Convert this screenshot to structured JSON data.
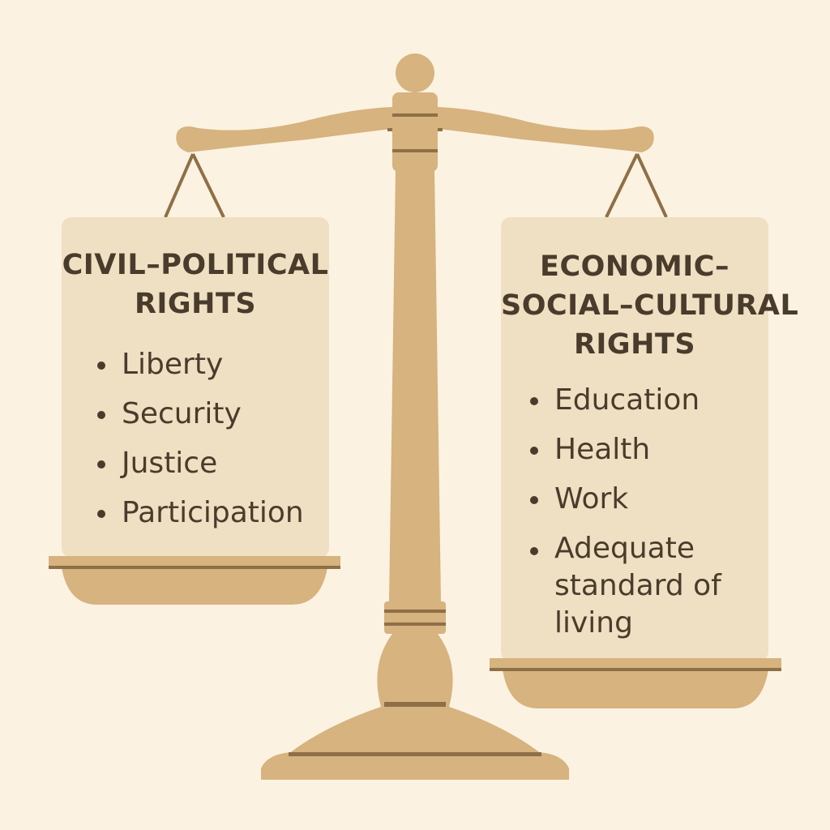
{
  "colors": {
    "background": "#fcf2e1",
    "scale_body": "#d6b37f",
    "scale_shadow": "#8f6f46",
    "panel_fill": "#efe0c3",
    "text": "#4a3c2c"
  },
  "left_panel": {
    "title_lines": [
      "CIVIL–POLITICAL",
      "RIGHTS"
    ],
    "items": [
      "Liberty",
      "Security",
      "Justice",
      "Participation"
    ]
  },
  "right_panel": {
    "title_lines": [
      "ECONOMIC–",
      "SOCIAL–CULTURAL",
      "RIGHTS"
    ],
    "items": [
      "Education",
      "Health",
      "Work",
      "Adequate standard of living"
    ]
  },
  "icons": [
    "balance-scale-icon"
  ]
}
